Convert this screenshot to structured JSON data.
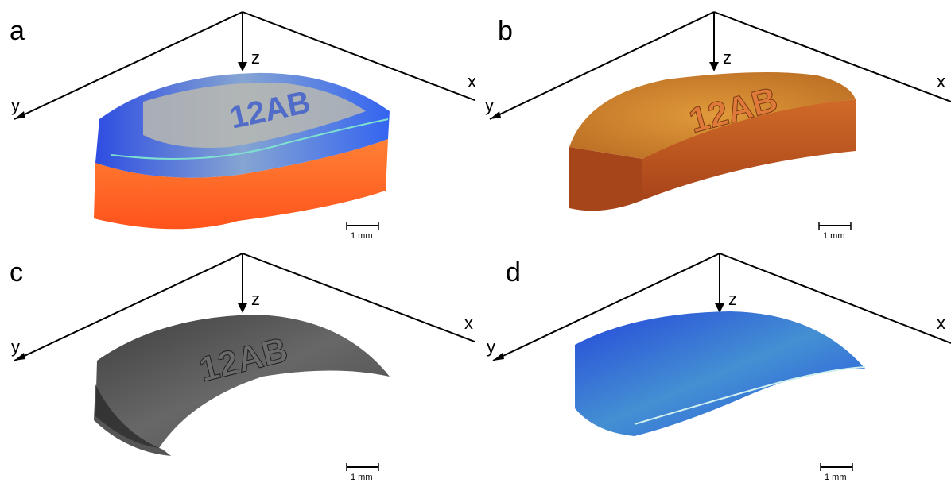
{
  "panels": [
    {
      "label": "a",
      "axes": {
        "x": "x",
        "y": "y",
        "z": "z"
      },
      "scale_bar": "1 mm"
    },
    {
      "label": "b",
      "axes": {
        "x": "x",
        "y": "y",
        "z": "z"
      },
      "scale_bar": "1 mm"
    },
    {
      "label": "c",
      "axes": {
        "x": "x",
        "y": "y",
        "z": "z"
      },
      "scale_bar": "1 mm"
    },
    {
      "label": "d",
      "axes": {
        "x": "x",
        "y": "y",
        "z": "z"
      },
      "scale_bar": "1 mm"
    }
  ],
  "specimen_text": "12AB",
  "colors": {
    "axis": "#000000",
    "orange_volume": "#ff5a1e",
    "blue_layers": "#1f4fe0",
    "gray_surface": "#4a4a4a",
    "bronze_surface": "#c0621f"
  }
}
